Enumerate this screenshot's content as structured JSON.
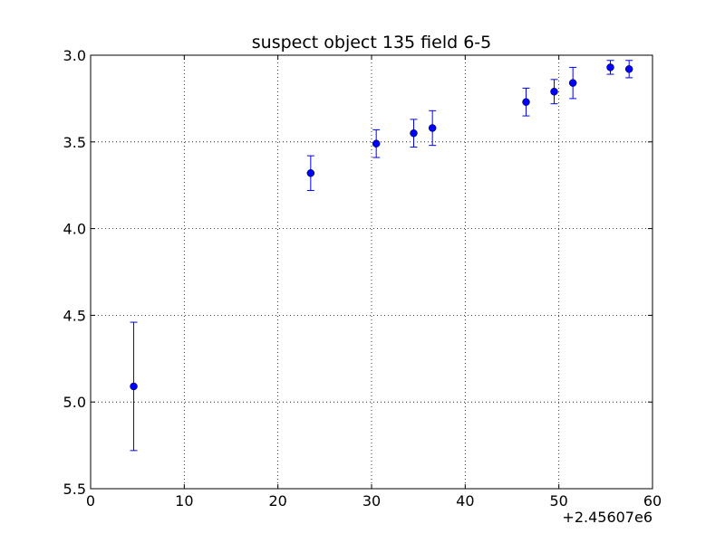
{
  "chart_data": {
    "type": "scatter",
    "title": "suspect object 135 field 6-5",
    "xlabel": "",
    "ylabel": "",
    "xlim": [
      0,
      60
    ],
    "ylim": [
      5.5,
      3.0
    ],
    "y_inverted": true,
    "x_offset_label": "+2.45607e6",
    "xticks": [
      0,
      10,
      20,
      30,
      40,
      50,
      60
    ],
    "xtick_labels": [
      "0",
      "10",
      "20",
      "30",
      "40",
      "50",
      "60"
    ],
    "yticks": [
      3.0,
      3.5,
      4.0,
      4.5,
      5.0,
      5.5
    ],
    "ytick_labels": [
      "3.0",
      "3.5",
      "4.0",
      "4.5",
      "5.0",
      "5.5"
    ],
    "grid": true,
    "color": "#0000ff",
    "series": [
      {
        "points": [
          {
            "x": 4.6,
            "y": 4.91,
            "err": 0.37
          },
          {
            "x": 23.5,
            "y": 3.68,
            "err": 0.1
          },
          {
            "x": 30.5,
            "y": 3.51,
            "err": 0.08
          },
          {
            "x": 34.5,
            "y": 3.45,
            "err": 0.08
          },
          {
            "x": 36.5,
            "y": 3.42,
            "err": 0.1
          },
          {
            "x": 46.5,
            "y": 3.27,
            "err": 0.08
          },
          {
            "x": 49.5,
            "y": 3.21,
            "err": 0.07
          },
          {
            "x": 51.5,
            "y": 3.16,
            "err": 0.09
          },
          {
            "x": 55.5,
            "y": 3.07,
            "err": 0.04
          },
          {
            "x": 57.5,
            "y": 3.08,
            "err": 0.05
          }
        ]
      }
    ]
  }
}
